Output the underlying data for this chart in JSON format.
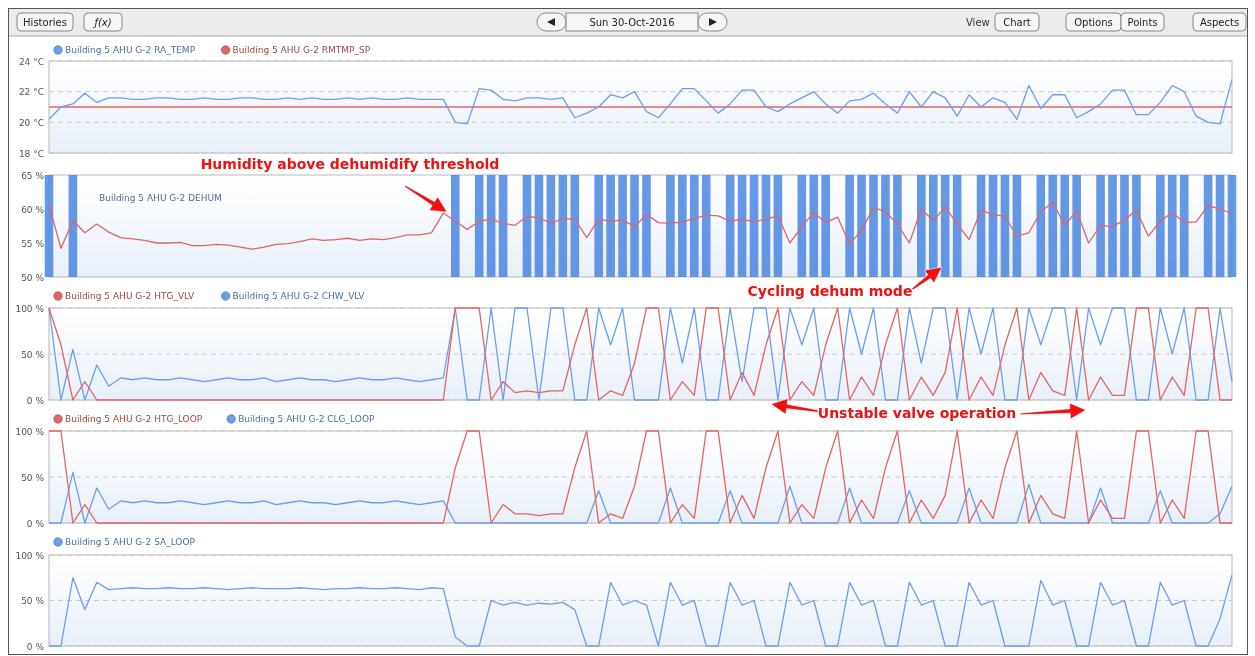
{
  "chart_data": [
    {
      "type": "other",
      "annotations": [
        "Histories",
        "ƒ(x)",
        "Sun 30-Oct-2016",
        "View",
        "Chart",
        "Options",
        "Points",
        "Aspects"
      ]
    },
    {
      "type": "line",
      "categories": [
        null,
        null,
        null,
        null,
        null,
        null,
        null,
        null,
        null,
        null,
        null,
        null,
        null,
        null,
        null,
        null,
        null,
        null,
        null,
        null,
        null,
        null,
        null,
        null,
        null,
        null,
        null,
        null,
        null,
        null,
        null,
        null,
        null,
        null,
        null,
        null,
        null,
        null,
        null,
        null,
        null,
        null,
        null,
        null,
        null,
        null,
        null,
        null,
        null,
        null,
        null,
        null,
        null,
        null,
        null,
        null,
        null,
        null,
        null,
        null,
        null,
        null,
        null,
        null,
        null,
        null,
        null,
        null,
        null,
        null,
        null,
        null,
        null,
        null,
        null,
        null,
        null,
        null,
        null,
        null,
        null,
        null,
        null,
        null,
        null,
        null,
        null,
        null,
        null,
        null,
        null,
        null,
        null,
        null,
        null,
        null,
        null,
        null,
        null,
        null
      ],
      "ylim": [
        18,
        24
      ],
      "yticks": [
        {
          "value": 18,
          "label": "18 °C"
        },
        {
          "value": 20,
          "label": "20 °C"
        },
        {
          "value": 22,
          "label": "22 °C"
        },
        {
          "value": 24,
          "label": "24 °C"
        }
      ],
      "grid": "y",
      "legend": "top left",
      "tick_labels": "y",
      "series": [
        {
          "name": "Building 5 AHU G-2 RA_TEMP",
          "color": "#6d9eeb",
          "values": [
            20.2,
            21.0,
            21.2,
            21.9,
            21.3,
            21.6,
            21.6,
            21.5,
            21.5,
            21.6,
            21.6,
            21.5,
            21.5,
            21.6,
            21.5,
            21.5,
            21.6,
            21.6,
            21.5,
            21.5,
            21.6,
            21.5,
            21.6,
            21.5,
            21.5,
            21.6,
            21.5,
            21.6,
            21.5,
            21.5,
            21.6,
            21.5,
            21.5,
            21.5,
            20.0,
            19.9,
            22.2,
            22.1,
            21.5,
            21.4,
            21.6,
            21.6,
            21.5,
            21.6,
            20.3,
            20.6,
            21.0,
            21.8,
            21.6,
            22.0,
            20.7,
            20.3,
            21.2,
            22.2,
            22.2,
            21.4,
            20.6,
            21.2,
            22.1,
            22.1,
            21.0,
            20.7,
            21.2,
            21.6,
            22.0,
            21.2,
            20.6,
            21.4,
            21.5,
            21.9,
            21.2,
            20.6,
            22.0,
            21.0,
            22.0,
            21.6,
            20.4,
            21.8,
            21.0,
            21.6,
            21.3,
            20.2,
            22.4,
            20.9,
            21.8,
            21.8,
            20.3,
            20.7,
            21.2,
            22.1,
            22.1,
            20.5,
            20.5,
            21.3,
            22.4,
            22.0,
            20.4,
            20.0,
            19.9,
            22.8
          ]
        },
        {
          "name": "Building 5 AHU G-2 RMTMP_SP",
          "color": "#e06666",
          "values": [
            21,
            21,
            21,
            21,
            21,
            21,
            21,
            21,
            21,
            21,
            21,
            21,
            21,
            21,
            21,
            21,
            21,
            21,
            21,
            21,
            21,
            21,
            21,
            21,
            21,
            21,
            21,
            21,
            21,
            21,
            21,
            21,
            21,
            21,
            21,
            21,
            21,
            21,
            21,
            21,
            21,
            21,
            21,
            21,
            21,
            21,
            21,
            21,
            21,
            21,
            21,
            21,
            21,
            21,
            21,
            21,
            21,
            21,
            21,
            21,
            21,
            21,
            21,
            21,
            21,
            21,
            21,
            21,
            21,
            21,
            21,
            21,
            21,
            21,
            21,
            21,
            21,
            21,
            21,
            21,
            21,
            21,
            21,
            21,
            21,
            21,
            21,
            21,
            21,
            21,
            21,
            21,
            21,
            21,
            21,
            21,
            21,
            21,
            21,
            21
          ]
        }
      ]
    },
    {
      "type": "line",
      "categories": [
        null,
        null,
        null,
        null,
        null,
        null,
        null,
        null,
        null,
        null,
        null,
        null,
        null,
        null,
        null,
        null,
        null,
        null,
        null,
        null,
        null,
        null,
        null,
        null,
        null,
        null,
        null,
        null,
        null,
        null,
        null,
        null,
        null,
        null,
        null,
        null,
        null,
        null,
        null,
        null,
        null,
        null,
        null,
        null,
        null,
        null,
        null,
        null,
        null,
        null,
        null,
        null,
        null,
        null,
        null,
        null,
        null,
        null,
        null,
        null,
        null,
        null,
        null,
        null,
        null,
        null,
        null,
        null,
        null,
        null,
        null,
        null,
        null,
        null,
        null,
        null,
        null,
        null,
        null,
        null,
        null,
        null,
        null,
        null,
        null,
        null,
        null,
        null,
        null,
        null,
        null,
        null,
        null,
        null,
        null,
        null,
        null,
        null,
        null,
        null
      ],
      "ylim": [
        50,
        65
      ],
      "yticks": [
        {
          "value": 50,
          "label": "50 %"
        },
        {
          "value": 55,
          "label": "55 %"
        },
        {
          "value": 60,
          "label": "60 %"
        },
        {
          "value": 65,
          "label": "65 %"
        }
      ],
      "tick_labels": "y",
      "annotations": [
        "Humidity above dehumidify threshold",
        "Cycling dehum mode"
      ],
      "series": [
        {
          "name": "Building 5 AHU G-2 DEHUM",
          "type": "bar",
          "color": "#4a86e0",
          "values": [
            65,
            null,
            65,
            null,
            null,
            null,
            null,
            null,
            null,
            null,
            null,
            null,
            null,
            null,
            null,
            null,
            null,
            null,
            null,
            null,
            null,
            null,
            null,
            null,
            null,
            null,
            null,
            null,
            null,
            null,
            null,
            null,
            null,
            null,
            65,
            null,
            65,
            65,
            65,
            null,
            65,
            65,
            65,
            65,
            65,
            null,
            65,
            65,
            65,
            65,
            65,
            null,
            65,
            65,
            65,
            65,
            null,
            65,
            65,
            65,
            65,
            65,
            null,
            65,
            65,
            65,
            null,
            65,
            65,
            65,
            65,
            65,
            null,
            65,
            65,
            65,
            65,
            null,
            65,
            65,
            65,
            65,
            null,
            65,
            65,
            65,
            65,
            null,
            65,
            65,
            65,
            65,
            null,
            65,
            65,
            65,
            null,
            65,
            65,
            65
          ]
        },
        {
          "color": "#e06666",
          "values": [
            60.6,
            54.2,
            58.3,
            56.5,
            57.8,
            56.6,
            55.8,
            55.6,
            55.4,
            55.0,
            55.0,
            55.1,
            54.6,
            54.6,
            54.8,
            54.7,
            54.4,
            54.1,
            54.4,
            54.8,
            54.9,
            55.2,
            55.6,
            55.4,
            55.5,
            55.7,
            55.4,
            55.6,
            55.5,
            55.8,
            56.2,
            56.2,
            56.5,
            59.4,
            58.2,
            57.0,
            58.2,
            58.5,
            57.9,
            57.6,
            58.9,
            58.7,
            57.9,
            58.6,
            58.5,
            55.8,
            58.5,
            58.2,
            58.4,
            57.4,
            59.2,
            58.0,
            57.9,
            58.1,
            58.6,
            59.1,
            59.0,
            58.2,
            58.5,
            58.1,
            58.5,
            59.0,
            55.0,
            57.4,
            59.5,
            58.0,
            58.8,
            54.8,
            56.9,
            60.2,
            59.6,
            57.8,
            55.0,
            60.0,
            58.3,
            60.3,
            57.8,
            55.5,
            59.8,
            59.2,
            58.9,
            56.0,
            56.5,
            59.6,
            61.0,
            57.6,
            59.7,
            55.0,
            57.6,
            57.4,
            58.4,
            59.8,
            56.0,
            58.2,
            59.5,
            58.0,
            58.1,
            60.5,
            60.0,
            59.3
          ]
        }
      ]
    },
    {
      "type": "line",
      "categories": [
        null,
        null,
        null,
        null,
        null,
        null,
        null,
        null,
        null,
        null,
        null,
        null,
        null,
        null,
        null,
        null,
        null,
        null,
        null,
        null,
        null,
        null,
        null,
        null,
        null,
        null,
        null,
        null,
        null,
        null,
        null,
        null,
        null,
        null,
        null,
        null,
        null,
        null,
        null,
        null,
        null,
        null,
        null,
        null,
        null,
        null,
        null,
        null,
        null,
        null,
        null,
        null,
        null,
        null,
        null,
        null,
        null,
        null,
        null,
        null,
        null,
        null,
        null,
        null,
        null,
        null,
        null,
        null,
        null,
        null,
        null,
        null,
        null,
        null,
        null,
        null,
        null,
        null,
        null,
        null,
        null,
        null,
        null,
        null,
        null,
        null,
        null,
        null,
        null,
        null,
        null,
        null,
        null,
        null,
        null,
        null,
        null,
        null,
        null,
        null
      ],
      "ylim": [
        0,
        100
      ],
      "yticks": [
        {
          "value": 0,
          "label": "0 %"
        },
        {
          "value": 50,
          "label": "50 %"
        },
        {
          "value": 100,
          "label": "100 %"
        }
      ],
      "grid": "y",
      "legend": "top left",
      "tick_labels": "y",
      "annotations": [
        "Unstable valve operation"
      ],
      "series": [
        {
          "name": "Building 5 AHU G-2 HTG_VLV",
          "color": "#e06666",
          "values": [
            100,
            60,
            0,
            20,
            0,
            0,
            0,
            0,
            0,
            0,
            0,
            0,
            0,
            0,
            0,
            0,
            0,
            0,
            0,
            0,
            0,
            0,
            0,
            0,
            0,
            0,
            0,
            0,
            0,
            0,
            0,
            0,
            0,
            0,
            100,
            100,
            100,
            0,
            20,
            8,
            10,
            8,
            10,
            10,
            60,
            100,
            0,
            10,
            5,
            40,
            100,
            100,
            0,
            20,
            5,
            100,
            100,
            0,
            30,
            5,
            60,
            100,
            0,
            20,
            5,
            60,
            100,
            0,
            25,
            5,
            60,
            100,
            0,
            25,
            5,
            30,
            100,
            0,
            25,
            5,
            60,
            100,
            0,
            30,
            10,
            5,
            100,
            0,
            25,
            5,
            5,
            100,
            100,
            0,
            25,
            5,
            100,
            100,
            0,
            0
          ]
        },
        {
          "name": "Building 5 AHU G-2 CHW_VLV",
          "color": "#6d9eeb",
          "values": [
            100,
            0,
            55,
            0,
            38,
            15,
            24,
            22,
            24,
            22,
            22,
            24,
            22,
            20,
            22,
            24,
            22,
            22,
            24,
            20,
            22,
            24,
            22,
            22,
            20,
            22,
            24,
            22,
            22,
            24,
            22,
            20,
            22,
            24,
            100,
            0,
            0,
            100,
            0,
            100,
            100,
            0,
            100,
            100,
            0,
            0,
            100,
            60,
            100,
            0,
            0,
            0,
            100,
            40,
            100,
            0,
            0,
            100,
            20,
            100,
            100,
            0,
            100,
            60,
            100,
            0,
            0,
            100,
            50,
            100,
            0,
            0,
            100,
            40,
            100,
            100,
            0,
            100,
            50,
            100,
            0,
            0,
            100,
            60,
            100,
            100,
            0,
            100,
            60,
            100,
            100,
            0,
            0,
            100,
            50,
            100,
            0,
            0,
            100,
            20
          ]
        }
      ]
    },
    {
      "type": "line",
      "categories": [
        null,
        null,
        null,
        null,
        null,
        null,
        null,
        null,
        null,
        null,
        null,
        null,
        null,
        null,
        null,
        null,
        null,
        null,
        null,
        null,
        null,
        null,
        null,
        null,
        null,
        null,
        null,
        null,
        null,
        null,
        null,
        null,
        null,
        null,
        null,
        null,
        null,
        null,
        null,
        null,
        null,
        null,
        null,
        null,
        null,
        null,
        null,
        null,
        null,
        null,
        null,
        null,
        null,
        null,
        null,
        null,
        null,
        null,
        null,
        null,
        null,
        null,
        null,
        null,
        null,
        null,
        null,
        null,
        null,
        null,
        null,
        null,
        null,
        null,
        null,
        null,
        null,
        null,
        null,
        null,
        null,
        null,
        null,
        null,
        null,
        null,
        null,
        null,
        null,
        null,
        null,
        null,
        null,
        null,
        null,
        null,
        null,
        null,
        null,
        null
      ],
      "ylim": [
        0,
        100
      ],
      "yticks": [
        {
          "value": 0,
          "label": "0 %"
        },
        {
          "value": 50,
          "label": "50 %"
        },
        {
          "value": 100,
          "label": "100 %"
        }
      ],
      "grid": "y",
      "legend": "top left",
      "tick_labels": "y",
      "series": [
        {
          "name": "Building 5 AHU G-2 HTG_LOOP",
          "color": "#e06666",
          "values": [
            100,
            100,
            0,
            20,
            0,
            0,
            0,
            0,
            0,
            0,
            0,
            0,
            0,
            0,
            0,
            0,
            0,
            0,
            0,
            0,
            0,
            0,
            0,
            0,
            0,
            0,
            0,
            0,
            0,
            0,
            0,
            0,
            0,
            0,
            60,
            100,
            100,
            0,
            20,
            10,
            10,
            8,
            10,
            10,
            60,
            100,
            0,
            10,
            5,
            40,
            100,
            100,
            0,
            20,
            5,
            100,
            100,
            0,
            30,
            5,
            60,
            100,
            0,
            20,
            5,
            60,
            100,
            0,
            25,
            5,
            60,
            100,
            0,
            25,
            5,
            30,
            100,
            0,
            25,
            5,
            60,
            100,
            0,
            30,
            10,
            5,
            100,
            0,
            25,
            5,
            5,
            100,
            100,
            0,
            25,
            5,
            100,
            100,
            0,
            0
          ]
        },
        {
          "name": "Building 5 AHU G-2 CLG_LOOP",
          "color": "#6d9eeb",
          "values": [
            0,
            0,
            55,
            0,
            38,
            15,
            24,
            22,
            24,
            22,
            22,
            24,
            22,
            20,
            22,
            24,
            22,
            22,
            24,
            20,
            22,
            24,
            22,
            22,
            20,
            22,
            24,
            22,
            22,
            24,
            22,
            20,
            22,
            24,
            0,
            0,
            0,
            0,
            0,
            0,
            0,
            0,
            0,
            0,
            0,
            0,
            35,
            0,
            0,
            0,
            0,
            0,
            38,
            0,
            0,
            0,
            0,
            35,
            0,
            0,
            0,
            0,
            40,
            0,
            0,
            0,
            0,
            38,
            0,
            0,
            0,
            0,
            35,
            0,
            0,
            0,
            0,
            38,
            0,
            0,
            0,
            0,
            42,
            0,
            0,
            0,
            0,
            0,
            38,
            0,
            0,
            0,
            0,
            35,
            0,
            0,
            0,
            0,
            10,
            40
          ]
        }
      ]
    },
    {
      "type": "line",
      "categories": [
        null,
        null,
        null,
        null,
        null,
        null,
        null,
        null,
        null,
        null,
        null,
        null,
        null,
        null,
        null,
        null,
        null,
        null,
        null,
        null,
        null,
        null,
        null,
        null,
        null,
        null,
        null,
        null,
        null,
        null,
        null,
        null,
        null,
        null,
        null,
        null,
        null,
        null,
        null,
        null,
        null,
        null,
        null,
        null,
        null,
        null,
        null,
        null,
        null,
        null,
        null,
        null,
        null,
        null,
        null,
        null,
        null,
        null,
        null,
        null,
        null,
        null,
        null,
        null,
        null,
        null,
        null,
        null,
        null,
        null,
        null,
        null,
        null,
        null,
        null,
        null,
        null,
        null,
        null,
        null,
        null,
        null,
        null,
        null,
        null,
        null,
        null,
        null,
        null,
        null,
        null,
        null,
        null,
        null,
        null,
        null,
        null,
        null,
        null,
        null
      ],
      "ylim": [
        0,
        100
      ],
      "yticks": [
        {
          "value": 0,
          "label": "0 %"
        },
        {
          "value": 50,
          "label": "50 %"
        },
        {
          "value": 100,
          "label": "100 %"
        }
      ],
      "grid": "y",
      "legend": "top left",
      "tick_labels": "y",
      "series": [
        {
          "name": "Building 5 AHU G-2 SA_LOOP",
          "color": "#6d9eeb",
          "values": [
            0,
            0,
            75,
            40,
            70,
            62,
            63,
            64,
            63,
            63,
            64,
            63,
            63,
            64,
            63,
            62,
            63,
            64,
            63,
            63,
            63,
            64,
            63,
            62,
            63,
            63,
            64,
            63,
            63,
            64,
            63,
            62,
            64,
            63,
            10,
            0,
            0,
            50,
            45,
            48,
            45,
            47,
            46,
            48,
            40,
            0,
            0,
            70,
            45,
            50,
            45,
            0,
            70,
            45,
            50,
            0,
            0,
            70,
            45,
            50,
            0,
            0,
            70,
            45,
            50,
            0,
            0,
            70,
            45,
            50,
            0,
            0,
            70,
            45,
            50,
            0,
            0,
            70,
            45,
            50,
            0,
            0,
            0,
            72,
            45,
            50,
            0,
            0,
            70,
            45,
            50,
            0,
            0,
            70,
            45,
            50,
            0,
            0,
            30,
            78
          ]
        }
      ]
    }
  ]
}
